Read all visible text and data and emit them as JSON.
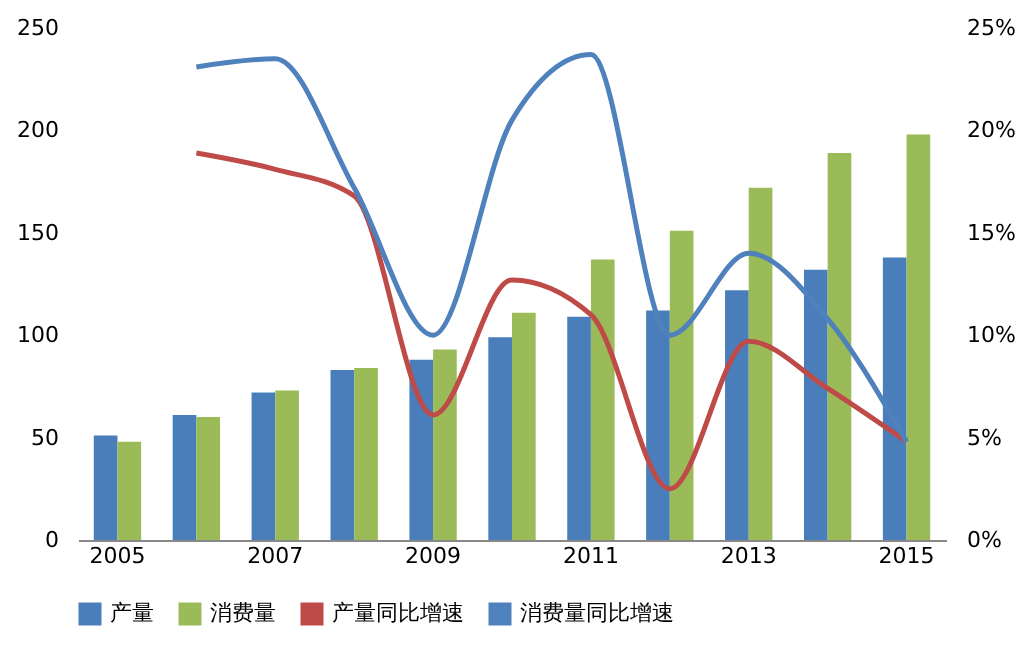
{
  "chart_data": {
    "type": "bar",
    "categories": [
      "2005",
      null,
      "2007",
      null,
      "2009",
      null,
      "2011",
      null,
      "2013",
      null,
      "2015"
    ],
    "series": [
      {
        "name": "产量",
        "color": "#4a7ebb",
        "values": [
          51,
          61,
          72,
          83,
          88,
          99,
          109,
          112,
          122,
          132,
          138
        ]
      },
      {
        "name": "消费量",
        "color": "#9bbb59",
        "values": [
          48,
          60,
          73,
          84,
          93,
          111,
          137,
          151,
          172,
          189,
          198
        ]
      },
      {
        "name": "产量同比增速",
        "color": "#be4b48",
        "type": "line",
        "axis": "y2",
        "values": [
          null,
          18.9,
          18.1,
          16.8,
          6.1,
          12.7,
          11.0,
          2.5,
          9.7,
          7.4,
          4.8
        ]
      },
      {
        "name": "消费量同比增速",
        "color": "#4f81bd",
        "type": "line",
        "axis": "y2",
        "values": [
          null,
          23.1,
          23.5,
          17.2,
          10.0,
          20.5,
          23.7,
          10.0,
          14.0,
          10.8,
          4.8
        ]
      }
    ],
    "ylim": [
      0,
      250
    ],
    "yticks": [
      0,
      50,
      100,
      150,
      200,
      250
    ],
    "y2lim": [
      0,
      25
    ],
    "y2ticks": [
      {
        "value": 0,
        "label": "0%"
      },
      {
        "value": 5,
        "label": "5%"
      },
      {
        "value": 10,
        "label": "10%"
      },
      {
        "value": 15,
        "label": "15%"
      },
      {
        "value": 20,
        "label": "20%"
      },
      {
        "value": 25,
        "label": "25%"
      }
    ],
    "grid": false,
    "legend": "bottom",
    "line_style": "solid",
    "marker": "none"
  }
}
